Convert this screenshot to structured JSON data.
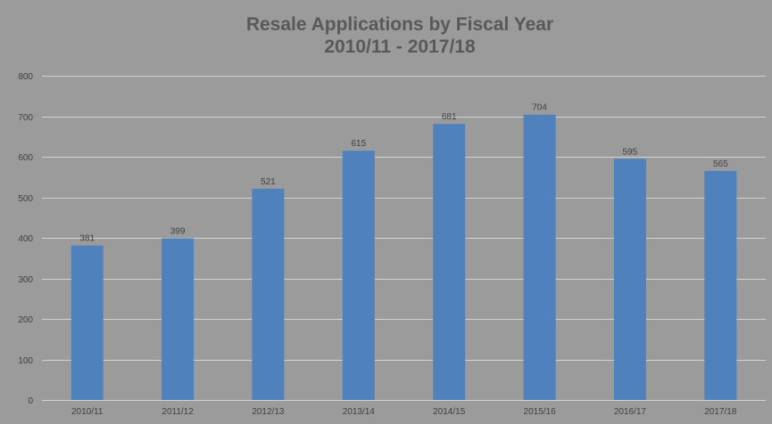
{
  "chart_data": {
    "type": "bar",
    "title_lines": [
      "Resale Applications by Fiscal Year",
      "2010/11 - 2017/18"
    ],
    "categories": [
      "2010/11",
      "2011/12",
      "2012/13",
      "2013/14",
      "2014/15",
      "2015/16",
      "2016/17",
      "2017/18"
    ],
    "values": [
      381,
      399,
      521,
      615,
      681,
      704,
      595,
      565
    ],
    "ylim": [
      0,
      800
    ],
    "yticks": [
      0,
      100,
      200,
      300,
      400,
      500,
      600,
      700,
      800
    ],
    "xlabel": "",
    "ylabel": "",
    "grid": true,
    "legend": "none",
    "data_labels": true,
    "colors": {
      "background": "#9b9b9b",
      "bar": "#4f81bd",
      "gridline": "#d2d2d2",
      "title": "#595959",
      "text": "#404040"
    }
  }
}
